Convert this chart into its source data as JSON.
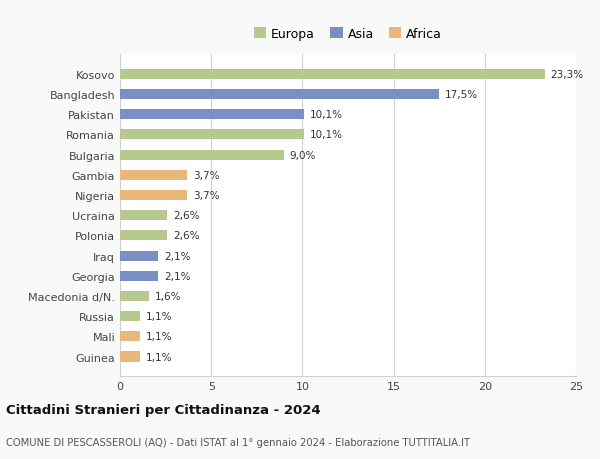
{
  "categories": [
    "Kosovo",
    "Bangladesh",
    "Pakistan",
    "Romania",
    "Bulgaria",
    "Gambia",
    "Nigeria",
    "Ucraina",
    "Polonia",
    "Iraq",
    "Georgia",
    "Macedonia d/N.",
    "Russia",
    "Mali",
    "Guinea"
  ],
  "values": [
    23.3,
    17.5,
    10.1,
    10.1,
    9.0,
    3.7,
    3.7,
    2.6,
    2.6,
    2.1,
    2.1,
    1.6,
    1.1,
    1.1,
    1.1
  ],
  "continents": [
    "Europa",
    "Asia",
    "Asia",
    "Europa",
    "Europa",
    "Africa",
    "Africa",
    "Europa",
    "Europa",
    "Asia",
    "Asia",
    "Europa",
    "Europa",
    "Africa",
    "Africa"
  ],
  "colors": {
    "Europa": "#b5c98e",
    "Asia": "#7a8fc2",
    "Africa": "#e8b87a"
  },
  "labels": [
    "23,3%",
    "17,5%",
    "10,1%",
    "10,1%",
    "9,0%",
    "3,7%",
    "3,7%",
    "2,6%",
    "2,6%",
    "2,1%",
    "2,1%",
    "1,6%",
    "1,1%",
    "1,1%",
    "1,1%"
  ],
  "xlim": [
    0,
    25
  ],
  "xticks": [
    0,
    5,
    10,
    15,
    20,
    25
  ],
  "title": "Cittadini Stranieri per Cittadinanza - 2024",
  "subtitle": "COMUNE DI PESCASSEROLI (AQ) - Dati ISTAT al 1° gennaio 2024 - Elaborazione TUTTITALIA.IT",
  "background_color": "#f9f9f9",
  "plot_bg_color": "#ffffff",
  "legend_labels": [
    "Europa",
    "Asia",
    "Africa"
  ],
  "grid_color": "#d0d0d0"
}
